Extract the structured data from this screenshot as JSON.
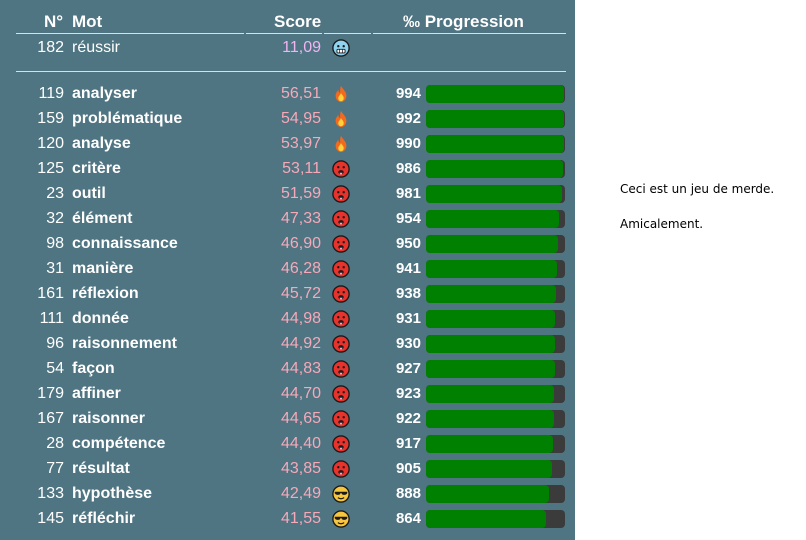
{
  "header": {
    "num": "N°",
    "word": "Mot",
    "score": "Score",
    "progression": "‰ Progression"
  },
  "last_guess": {
    "num": "182",
    "word": "réussir",
    "score": "11,09",
    "icon": "cold-face-icon"
  },
  "rows": [
    {
      "num": "119",
      "word": "analyser",
      "score": "56,51",
      "icon": "fire-icon",
      "progress": "994",
      "fill": 0.994
    },
    {
      "num": "159",
      "word": "problématique",
      "score": "54,95",
      "icon": "fire-icon",
      "progress": "992",
      "fill": 0.992
    },
    {
      "num": "120",
      "word": "analyse",
      "score": "53,97",
      "icon": "fire-icon",
      "progress": "990",
      "fill": 0.99
    },
    {
      "num": "125",
      "word": "critère",
      "score": "53,11",
      "icon": "hot-face-icon",
      "progress": "986",
      "fill": 0.986
    },
    {
      "num": "23",
      "word": "outil",
      "score": "51,59",
      "icon": "hot-face-icon",
      "progress": "981",
      "fill": 0.981
    },
    {
      "num": "32",
      "word": "élément",
      "score": "47,33",
      "icon": "hot-face-icon",
      "progress": "954",
      "fill": 0.954
    },
    {
      "num": "98",
      "word": "connaissance",
      "score": "46,90",
      "icon": "hot-face-icon",
      "progress": "950",
      "fill": 0.95
    },
    {
      "num": "31",
      "word": "manière",
      "score": "46,28",
      "icon": "hot-face-icon",
      "progress": "941",
      "fill": 0.941
    },
    {
      "num": "161",
      "word": "réflexion",
      "score": "45,72",
      "icon": "hot-face-icon",
      "progress": "938",
      "fill": 0.938
    },
    {
      "num": "111",
      "word": "donnée",
      "score": "44,98",
      "icon": "hot-face-icon",
      "progress": "931",
      "fill": 0.931
    },
    {
      "num": "96",
      "word": "raisonnement",
      "score": "44,92",
      "icon": "hot-face-icon",
      "progress": "930",
      "fill": 0.93
    },
    {
      "num": "54",
      "word": "façon",
      "score": "44,83",
      "icon": "hot-face-icon",
      "progress": "927",
      "fill": 0.927
    },
    {
      "num": "179",
      "word": "affiner",
      "score": "44,70",
      "icon": "hot-face-icon",
      "progress": "923",
      "fill": 0.923
    },
    {
      "num": "167",
      "word": "raisonner",
      "score": "44,65",
      "icon": "hot-face-icon",
      "progress": "922",
      "fill": 0.922
    },
    {
      "num": "28",
      "word": "compétence",
      "score": "44,40",
      "icon": "hot-face-icon",
      "progress": "917",
      "fill": 0.917
    },
    {
      "num": "77",
      "word": "résultat",
      "score": "43,85",
      "icon": "hot-face-icon",
      "progress": "905",
      "fill": 0.905
    },
    {
      "num": "133",
      "word": "hypothèse",
      "score": "42,49",
      "icon": "sunglasses-face-icon",
      "progress": "888",
      "fill": 0.888
    },
    {
      "num": "145",
      "word": "réfléchir",
      "score": "41,55",
      "icon": "sunglasses-face-icon",
      "progress": "864",
      "fill": 0.864
    }
  ],
  "message": {
    "line1": "Ceci est un jeu de merde.",
    "line2": "Amicalement."
  },
  "colors": {
    "panel": "#4f7482",
    "bar_fill": "#008000",
    "bar_track": "#3b3b3b",
    "score": "#f6a9b9"
  }
}
